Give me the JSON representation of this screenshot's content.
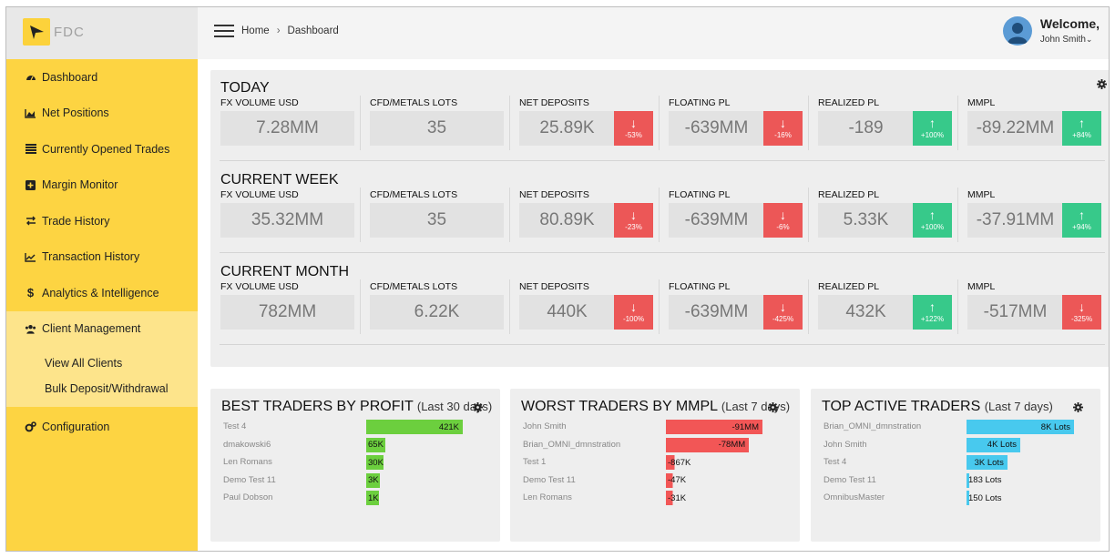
{
  "app": {
    "logo_text": "FDC"
  },
  "sidebar": {
    "items": [
      {
        "label": "Dashboard",
        "icon": "dashboard-icon"
      },
      {
        "label": "Net Positions",
        "icon": "area-chart-icon"
      },
      {
        "label": "Currently Opened Trades",
        "icon": "list-icon"
      },
      {
        "label": "Margin Monitor",
        "icon": "plus-square-icon"
      },
      {
        "label": "Trade History",
        "icon": "exchange-icon"
      },
      {
        "label": "Transaction History",
        "icon": "line-chart-icon"
      },
      {
        "label": "Analytics & Intelligence",
        "icon": "dollar-icon"
      },
      {
        "label": "Client Management",
        "icon": "users-icon"
      }
    ],
    "sub_items": [
      "View All Clients",
      "Bulk Deposit/Withdrawal"
    ],
    "config_label": "Configuration"
  },
  "header": {
    "breadcrumb": [
      "Home",
      "Dashboard"
    ],
    "breadcrumb_sep": "›",
    "welcome": "Welcome,",
    "user": "John Smith"
  },
  "colors": {
    "down": "#ec5757",
    "up": "#37c98a",
    "green": "#6ccf3e",
    "red": "#f25656",
    "blue": "#48c9ee",
    "accent": "#fdd442"
  },
  "stats": {
    "labels": [
      "FX VOLUME USD",
      "CFD/METALS LOTS",
      "NET DEPOSITS",
      "FLOATING PL",
      "REALIZED PL",
      "MMPL"
    ],
    "sections": [
      {
        "title": "TODAY",
        "values": [
          {
            "v": "7.28MM"
          },
          {
            "v": "35"
          },
          {
            "v": "25.89K",
            "badge": "-53%",
            "dir": "down"
          },
          {
            "v": "-639MM",
            "badge": "-16%",
            "dir": "down"
          },
          {
            "v": "-189",
            "badge": "+100%",
            "dir": "up"
          },
          {
            "v": "-89.22MM",
            "badge": "+84%",
            "dir": "up"
          }
        ]
      },
      {
        "title": "CURRENT WEEK",
        "values": [
          {
            "v": "35.32MM"
          },
          {
            "v": "35"
          },
          {
            "v": "80.89K",
            "badge": "-23%",
            "dir": "down"
          },
          {
            "v": "-639MM",
            "badge": "-6%",
            "dir": "down"
          },
          {
            "v": "5.33K",
            "badge": "+100%",
            "dir": "up"
          },
          {
            "v": "-37.91MM",
            "badge": "+94%",
            "dir": "up"
          }
        ]
      },
      {
        "title": "CURRENT MONTH",
        "values": [
          {
            "v": "782MM"
          },
          {
            "v": "6.22K"
          },
          {
            "v": "440K",
            "badge": "-100%",
            "dir": "down"
          },
          {
            "v": "-639MM",
            "badge": "-425%",
            "dir": "down"
          },
          {
            "v": "432K",
            "badge": "+122%",
            "dir": "up"
          },
          {
            "v": "-517MM",
            "badge": "-325%",
            "dir": "down"
          }
        ]
      }
    ]
  },
  "cards": [
    {
      "title": "BEST TRADERS BY PROFIT",
      "subtitle": "(Last 30 days)",
      "color": "green",
      "rows": [
        {
          "name": "Test 4",
          "label": "421K",
          "fraction": 1.0
        },
        {
          "name": "dmakowski6",
          "label": "65K",
          "fraction": 0.2
        },
        {
          "name": "Len Romans",
          "label": "30K",
          "fraction": 0.18
        },
        {
          "name": "Demo Test 11",
          "label": "3K",
          "fraction": 0.14
        },
        {
          "name": "Paul Dobson",
          "label": "1K",
          "fraction": 0.13
        }
      ]
    },
    {
      "title": "WORST TRADERS BY MMPL",
      "subtitle": "(Last 7 days)",
      "color": "red",
      "rows": [
        {
          "name": "John Smith",
          "label": "-91MM",
          "fraction": 1.0
        },
        {
          "name": "Brian_OMNI_dmnstration",
          "label": "-78MM",
          "fraction": 0.86
        },
        {
          "name": "Test 1",
          "label": "-867K",
          "fraction": 0.09
        },
        {
          "name": "Demo Test 11",
          "label": "-47K",
          "fraction": 0.07
        },
        {
          "name": "Len Romans",
          "label": "-31K",
          "fraction": 0.07
        }
      ]
    },
    {
      "title": "TOP ACTIVE TRADERS",
      "subtitle": "(Last 7 days)",
      "color": "blue",
      "rows": [
        {
          "name": "Brian_OMNI_dmnstration",
          "label": "8K Lots",
          "fraction": 1.0
        },
        {
          "name": "John Smith",
          "label": "4K Lots",
          "fraction": 0.5
        },
        {
          "name": "Test 4",
          "label": "3K Lots",
          "fraction": 0.38
        },
        {
          "name": "Demo Test 11",
          "label": "183 Lots",
          "fraction": 0.02
        },
        {
          "name": "OmnibusMaster",
          "label": "150 Lots",
          "fraction": 0.02
        }
      ]
    }
  ]
}
